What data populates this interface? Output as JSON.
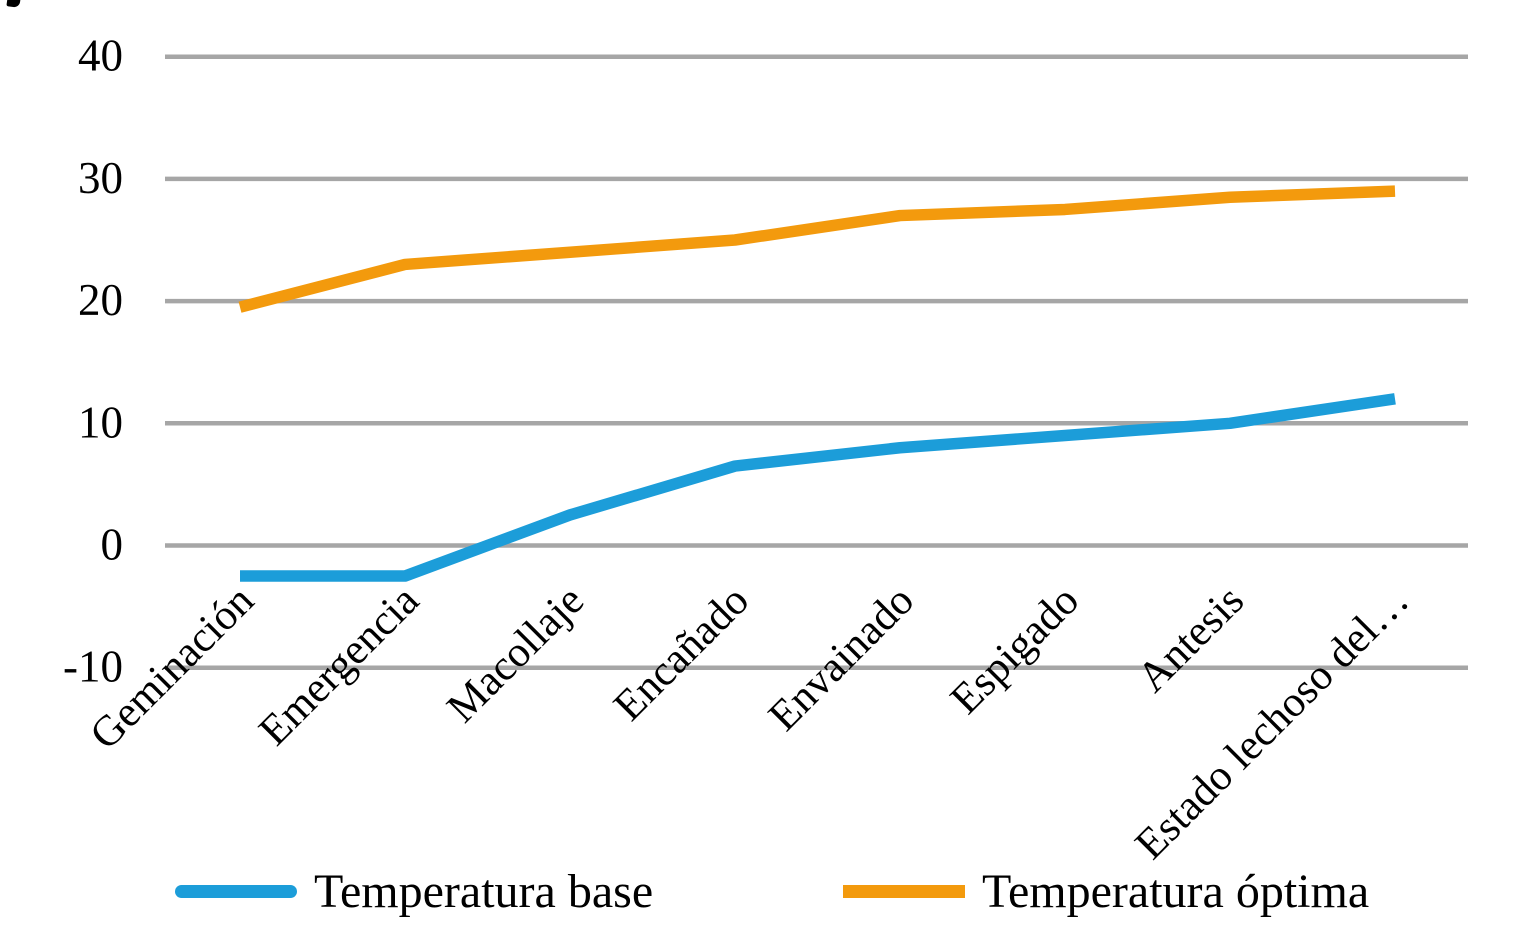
{
  "chart_data": {
    "type": "line",
    "categories": [
      "Geminación",
      "Emergencia",
      "Macollaje",
      "Encañado",
      "Envainado",
      "Espigado",
      "Antesis",
      "Estado lechoso del…"
    ],
    "series": [
      {
        "name": "Temperatura base",
        "color": "#1C9DD9",
        "values": [
          -2.5,
          -2.5,
          2.5,
          6.5,
          8,
          9,
          10,
          12
        ]
      },
      {
        "name": "Temperatura óptima",
        "color": "#F39A0D",
        "values": [
          19.5,
          23,
          24,
          25,
          27,
          27.5,
          28.5,
          29
        ]
      }
    ],
    "title": "",
    "xlabel": "",
    "ylabel": "",
    "ylim": [
      -10,
      40
    ],
    "yticks": [
      40,
      30,
      20,
      10,
      0,
      -10
    ],
    "ytick_labels": [
      "40",
      "30",
      "20",
      "10",
      "0",
      "-10"
    ],
    "grid": true,
    "gridline_color": "#A6A6A6",
    "axis_text_color": "#000000",
    "background_color": "#FFFFFF",
    "legend_position": "bottom",
    "x_label_rotation": -45
  }
}
